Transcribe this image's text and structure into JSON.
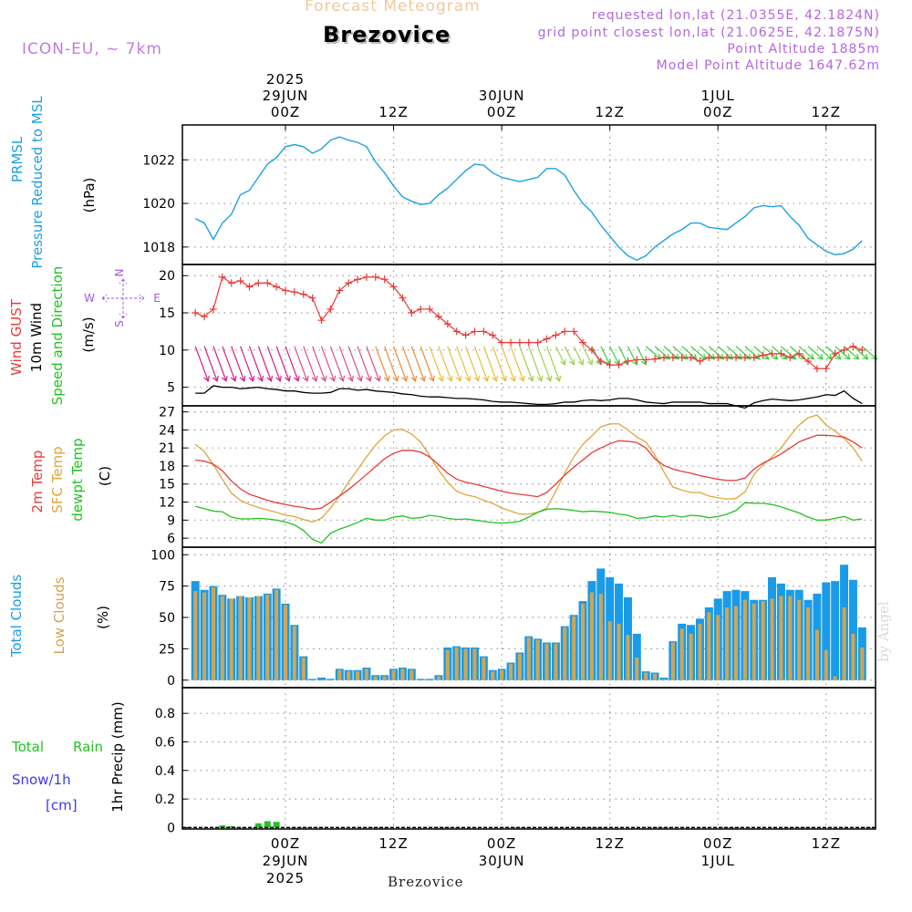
{
  "header": {
    "chart_type": "Forecast Meteogram",
    "location": "Brezovice",
    "model": "ICON-EU, ~ 7km",
    "requested": "requested lon,lat (21.0355E, 42.1824N)",
    "grid_point": "grid point closest lon,lat (21.0625E, 42.1875N)",
    "point_altitude": "Point Altitude 1885m",
    "model_altitude": "Model Point Altitude 1647.62m",
    "watermark": "by Angel",
    "footer_location": "Brezovice"
  },
  "time_axis": {
    "top_dates": [
      {
        "hour": 0,
        "lines": [
          "2025",
          "29JUN",
          "00Z"
        ]
      },
      {
        "hour": 12,
        "lines": [
          "12Z"
        ]
      },
      {
        "hour": 24,
        "lines": [
          "30JUN",
          "00Z"
        ]
      },
      {
        "hour": 36,
        "lines": [
          "12Z"
        ]
      },
      {
        "hour": 48,
        "lines": [
          "1JUL",
          "00Z"
        ]
      },
      {
        "hour": 60,
        "lines": [
          "12Z"
        ]
      }
    ],
    "bottom_dates": [
      {
        "hour": 0,
        "lines": [
          "00Z",
          "29JUN",
          "2025"
        ]
      },
      {
        "hour": 12,
        "lines": [
          "12Z"
        ]
      },
      {
        "hour": 24,
        "lines": [
          "00Z",
          "30JUN"
        ]
      },
      {
        "hour": 36,
        "lines": [
          "12Z"
        ]
      },
      {
        "hour": 48,
        "lines": [
          "00Z",
          "1JUL"
        ]
      },
      {
        "hour": 60,
        "lines": [
          "12Z"
        ]
      }
    ]
  },
  "panels": {
    "pressure": {
      "labels": [
        "PRMSL",
        "Pressure Reduced to MSL"
      ],
      "unit": "(hPa)",
      "color": "#1da1e0"
    },
    "wind": {
      "gust_label": "Wind GUST",
      "wind_label": "10m Wind",
      "dir_label": "Speed and Direction",
      "unit": "(m/s)",
      "compass": {
        "n": "N",
        "s": "S",
        "w": "W",
        "e": "E"
      },
      "gust_color": "#e83a3a",
      "wind_color": "#000000"
    },
    "temp": {
      "labels": [
        "2m Temp",
        "SFC Temp",
        "dewpt Temp"
      ],
      "unit": "(C)",
      "colors": [
        "#e83a3a",
        "#e0a53a",
        "#22c322"
      ]
    },
    "clouds": {
      "labels": [
        "Total Clouds",
        "Low Clouds"
      ],
      "unit": "(%)",
      "colors": [
        "#1a9be8",
        "#d2a551"
      ]
    },
    "precip": {
      "labels": [
        "Total",
        "Rain",
        "Snow/1h",
        "[cm]"
      ],
      "unit": "1hr Precip (mm)",
      "colors": [
        "#22c322",
        "#3b3bea"
      ]
    }
  },
  "chart_data": [
    {
      "type": "line",
      "title": "PRMSL Pressure Reduced to MSL",
      "ylabel": "(hPa)",
      "ylim": [
        1017.2,
        1023.6
      ],
      "yticks": [
        1018,
        1020,
        1022
      ],
      "x_hours": [
        -10,
        -9,
        -8,
        -7,
        -6,
        -5,
        -4,
        -3,
        -2,
        -1,
        0,
        1,
        2,
        3,
        4,
        5,
        6,
        7,
        8,
        9,
        10,
        11,
        12,
        13,
        14,
        15,
        16,
        17,
        18,
        19,
        20,
        21,
        22,
        23,
        24,
        25,
        26,
        27,
        28,
        29,
        30,
        31,
        32,
        33,
        34,
        35,
        36,
        37,
        38,
        39,
        40,
        41,
        42,
        43,
        44,
        45,
        46,
        47,
        48,
        49,
        50,
        51,
        52,
        53,
        54,
        55,
        56,
        57,
        58,
        59,
        60,
        61,
        62,
        63,
        64
      ],
      "series": [
        {
          "name": "PRMSL",
          "values": [
            1019.3,
            1019.1,
            1018.35,
            1019.1,
            1019.5,
            1020.4,
            1020.6,
            1021.2,
            1021.8,
            1022.1,
            1022.6,
            1022.7,
            1022.6,
            1022.3,
            1022.5,
            1022.9,
            1023.05,
            1022.9,
            1022.8,
            1022.6,
            1021.9,
            1021.4,
            1020.8,
            1020.3,
            1020.1,
            1019.95,
            1020.0,
            1020.4,
            1020.7,
            1021.1,
            1021.5,
            1021.8,
            1021.75,
            1021.4,
            1021.2,
            1021.1,
            1021.0,
            1021.1,
            1021.2,
            1021.6,
            1021.6,
            1021.3,
            1020.6,
            1020.0,
            1019.6,
            1019.0,
            1018.5,
            1018.0,
            1017.6,
            1017.4,
            1017.6,
            1018.0,
            1018.3,
            1018.6,
            1018.8,
            1019.1,
            1019.1,
            1018.9,
            1018.85,
            1018.8,
            1019.1,
            1019.4,
            1019.8,
            1019.9,
            1019.85,
            1019.9,
            1019.4,
            1019.0,
            1018.4,
            1018.1,
            1017.8,
            1017.65,
            1017.7,
            1017.9,
            1018.3
          ]
        }
      ]
    },
    {
      "type": "line",
      "title": "Wind GUST / 10m Wind Speed and Direction",
      "ylabel": "(m/s)",
      "ylim": [
        2.5,
        21.5
      ],
      "yticks": [
        5,
        10,
        15,
        20
      ],
      "x_hours": [
        -10,
        -9,
        -8,
        -7,
        -6,
        -5,
        -4,
        -3,
        -2,
        -1,
        0,
        1,
        2,
        3,
        4,
        5,
        6,
        7,
        8,
        9,
        10,
        11,
        12,
        13,
        14,
        15,
        16,
        17,
        18,
        19,
        20,
        21,
        22,
        23,
        24,
        25,
        26,
        27,
        28,
        29,
        30,
        31,
        32,
        33,
        34,
        35,
        36,
        37,
        38,
        39,
        40,
        41,
        42,
        43,
        44,
        45,
        46,
        47,
        48,
        49,
        50,
        51,
        52,
        53,
        54,
        55,
        56,
        57,
        58,
        59,
        60,
        61,
        62,
        63,
        64
      ],
      "series": [
        {
          "name": "Wind GUST",
          "values": [
            15.0,
            14.5,
            15.5,
            19.8,
            19.0,
            19.3,
            18.5,
            19.0,
            19.0,
            18.5,
            18.0,
            17.8,
            17.5,
            17.0,
            14.0,
            15.5,
            18.0,
            19.0,
            19.5,
            19.8,
            19.8,
            19.5,
            18.5,
            17.0,
            15.0,
            15.5,
            15.5,
            14.5,
            13.5,
            12.5,
            12.0,
            12.5,
            12.5,
            12.0,
            11.0,
            11.0,
            11.0,
            11.0,
            11.0,
            11.5,
            12.0,
            12.5,
            12.5,
            11.0,
            10.0,
            8.5,
            8.0,
            8.0,
            8.5,
            8.7,
            8.7,
            8.8,
            9.0,
            9.0,
            9.0,
            9.0,
            8.5,
            9.0,
            9.0,
            9.0,
            9.0,
            9.0,
            9.0,
            9.3,
            9.5,
            9.5,
            9.0,
            9.5,
            8.5,
            7.5,
            7.5,
            9.5,
            10.0,
            10.5,
            10.0
          ]
        },
        {
          "name": "10m Wind",
          "values": [
            4.2,
            4.2,
            5.2,
            5.0,
            5.0,
            4.8,
            4.9,
            5.0,
            4.8,
            4.7,
            4.5,
            4.5,
            4.3,
            4.2,
            4.2,
            4.3,
            4.8,
            4.8,
            4.6,
            4.7,
            4.5,
            4.4,
            4.3,
            4.1,
            4.0,
            3.8,
            3.7,
            3.7,
            3.6,
            3.5,
            3.5,
            3.4,
            3.3,
            3.1,
            3.0,
            3.0,
            2.9,
            2.8,
            2.7,
            2.7,
            2.8,
            3.0,
            3.0,
            3.2,
            3.3,
            3.2,
            3.3,
            3.5,
            3.5,
            3.3,
            3.0,
            2.9,
            2.8,
            3.0,
            3.0,
            3.0,
            3.0,
            2.8,
            2.8,
            2.8,
            2.5,
            2.2,
            2.9,
            3.2,
            3.4,
            3.3,
            3.2,
            3.3,
            3.5,
            3.7,
            4.0,
            3.9,
            4.5,
            3.5,
            2.8
          ]
        }
      ]
    },
    {
      "type": "line",
      "title": "2m Temp / SFC Temp / dewpt Temp",
      "ylabel": "(C)",
      "ylim": [
        4.5,
        28.0
      ],
      "yticks": [
        6,
        9,
        12,
        15,
        18,
        21,
        24,
        27
      ],
      "x_hours": [
        -10,
        -9,
        -8,
        -7,
        -6,
        -5,
        -4,
        -3,
        -2,
        -1,
        0,
        1,
        2,
        3,
        4,
        5,
        6,
        7,
        8,
        9,
        10,
        11,
        12,
        13,
        14,
        15,
        16,
        17,
        18,
        19,
        20,
        21,
        22,
        23,
        24,
        25,
        26,
        27,
        28,
        29,
        30,
        31,
        32,
        33,
        34,
        35,
        36,
        37,
        38,
        39,
        40,
        41,
        42,
        43,
        44,
        45,
        46,
        47,
        48,
        49,
        50,
        51,
        52,
        53,
        54,
        55,
        56,
        57,
        58,
        59,
        60,
        61,
        62,
        63,
        64
      ],
      "series": [
        {
          "name": "2m Temp",
          "values": [
            19.0,
            18.8,
            18.3,
            17.2,
            15.5,
            14.2,
            13.3,
            12.8,
            12.3,
            11.9,
            11.6,
            11.3,
            11.1,
            10.8,
            11.0,
            12.0,
            13.0,
            14.1,
            15.3,
            16.6,
            17.9,
            19.2,
            20.1,
            20.6,
            20.6,
            20.3,
            19.5,
            18.2,
            16.8,
            15.8,
            15.3,
            15.0,
            14.6,
            14.2,
            13.8,
            13.5,
            13.3,
            13.1,
            12.9,
            13.6,
            15.0,
            16.5,
            17.8,
            19.0,
            20.2,
            21.0,
            21.7,
            22.2,
            22.1,
            21.9,
            21.0,
            19.2,
            18.1,
            17.5,
            17.1,
            16.8,
            16.4,
            16.1,
            15.8,
            15.6,
            15.6,
            16.0,
            17.5,
            18.5,
            19.2,
            20.0,
            21.0,
            22.0,
            22.6,
            23.1,
            23.1,
            23.0,
            22.8,
            22.0,
            21.0
          ]
        },
        {
          "name": "SFC Temp",
          "values": [
            21.6,
            20.4,
            18.2,
            15.8,
            13.5,
            12.3,
            11.6,
            11.1,
            10.7,
            10.3,
            9.8,
            9.6,
            9.1,
            8.7,
            9.3,
            11.0,
            13.0,
            15.3,
            17.4,
            19.5,
            21.5,
            23.0,
            24.0,
            24.1,
            23.3,
            22.0,
            19.7,
            17.3,
            15.3,
            13.8,
            13.2,
            12.9,
            12.3,
            11.8,
            11.0,
            10.5,
            10.0,
            10.0,
            10.3,
            11.0,
            13.8,
            16.8,
            19.5,
            21.6,
            23.0,
            24.5,
            25.0,
            25.0,
            24.0,
            22.8,
            22.0,
            19.8,
            17.0,
            14.5,
            14.0,
            13.6,
            13.6,
            13.0,
            12.7,
            12.5,
            12.6,
            13.7,
            16.6,
            18.2,
            19.5,
            21.0,
            23.0,
            24.8,
            26.0,
            26.5,
            24.8,
            23.8,
            22.6,
            21.0,
            18.8
          ]
        },
        {
          "name": "dewpt Temp",
          "values": [
            11.3,
            10.9,
            10.5,
            10.4,
            9.5,
            9.2,
            9.2,
            9.3,
            9.2,
            9.0,
            8.7,
            8.2,
            7.3,
            5.8,
            5.2,
            6.8,
            7.5,
            8.0,
            8.6,
            9.3,
            9.0,
            9.0,
            9.5,
            9.7,
            9.3,
            9.4,
            9.8,
            9.6,
            9.3,
            9.1,
            9.2,
            9.0,
            8.8,
            8.6,
            8.5,
            8.6,
            8.8,
            9.5,
            10.3,
            10.8,
            10.9,
            10.8,
            10.6,
            10.4,
            10.5,
            10.4,
            10.3,
            10.0,
            9.8,
            9.3,
            9.4,
            9.7,
            9.5,
            9.8,
            9.5,
            9.8,
            9.7,
            9.4,
            9.6,
            10.0,
            10.6,
            11.9,
            11.8,
            11.8,
            11.6,
            11.2,
            10.7,
            10.2,
            9.5,
            9.0,
            9.0,
            9.3,
            9.6,
            9.0,
            9.2
          ]
        }
      ]
    },
    {
      "type": "bar",
      "title": "Total Clouds / Low Clouds",
      "ylabel": "(%)",
      "ylim": [
        -6,
        106
      ],
      "yticks": [
        0,
        25,
        50,
        75,
        100
      ],
      "x_hours": [
        -10,
        -9,
        -8,
        -7,
        -6,
        -5,
        -4,
        -3,
        -2,
        -1,
        0,
        1,
        2,
        3,
        4,
        5,
        6,
        7,
        8,
        9,
        10,
        11,
        12,
        13,
        14,
        15,
        16,
        17,
        18,
        19,
        20,
        21,
        22,
        23,
        24,
        25,
        26,
        27,
        28,
        29,
        30,
        31,
        32,
        33,
        34,
        35,
        36,
        37,
        38,
        39,
        40,
        41,
        42,
        43,
        44,
        45,
        46,
        47,
        48,
        49,
        50,
        51,
        52,
        53,
        54,
        55,
        56,
        57,
        58,
        59,
        60,
        61,
        62,
        63,
        64
      ],
      "series": [
        {
          "name": "Total Clouds",
          "values": [
            79,
            72,
            75,
            68,
            65,
            67,
            66,
            67,
            69,
            73,
            61,
            44,
            19,
            1,
            2,
            1,
            9,
            8,
            8,
            10,
            4,
            4,
            9,
            10,
            9,
            1,
            1,
            4,
            26,
            27,
            26,
            26,
            19,
            8,
            9,
            14,
            22,
            35,
            33,
            30,
            30,
            43,
            52,
            63,
            79,
            89,
            82,
            77,
            66,
            37,
            7,
            6,
            2,
            31,
            45,
            44,
            49,
            58,
            65,
            71,
            72,
            71,
            64,
            64,
            82,
            77,
            72,
            72,
            64,
            69,
            78,
            79,
            92,
            80,
            42
          ]
        },
        {
          "name": "Low Clouds",
          "values": [
            71,
            70,
            74,
            67,
            65,
            67,
            66,
            67,
            68,
            72,
            60,
            43,
            18,
            0,
            0,
            0,
            8,
            7,
            7,
            9,
            3,
            3,
            8,
            9,
            8,
            0,
            0,
            3,
            24,
            26,
            25,
            25,
            18,
            7,
            8,
            13,
            21,
            34,
            32,
            29,
            29,
            42,
            51,
            61,
            70,
            69,
            47,
            45,
            36,
            18,
            6,
            5,
            1,
            30,
            41,
            37,
            45,
            54,
            52,
            58,
            59,
            64,
            61,
            63,
            65,
            67,
            67,
            64,
            58,
            40,
            24,
            3,
            58,
            37,
            26
          ]
        }
      ]
    },
    {
      "type": "bar",
      "title": "1hr Precip",
      "ylabel": "1hr Precip (mm)",
      "ylim": [
        -0.01,
        0.98
      ],
      "yticks": [
        0,
        0.2,
        0.4,
        0.6,
        0.8
      ],
      "x_hours": [
        -7,
        -6,
        -3,
        -2,
        -1
      ],
      "series": [
        {
          "name": "Total Rain",
          "values": [
            0.015,
            0.01,
            0.03,
            0.045,
            0.04
          ]
        }
      ]
    }
  ]
}
